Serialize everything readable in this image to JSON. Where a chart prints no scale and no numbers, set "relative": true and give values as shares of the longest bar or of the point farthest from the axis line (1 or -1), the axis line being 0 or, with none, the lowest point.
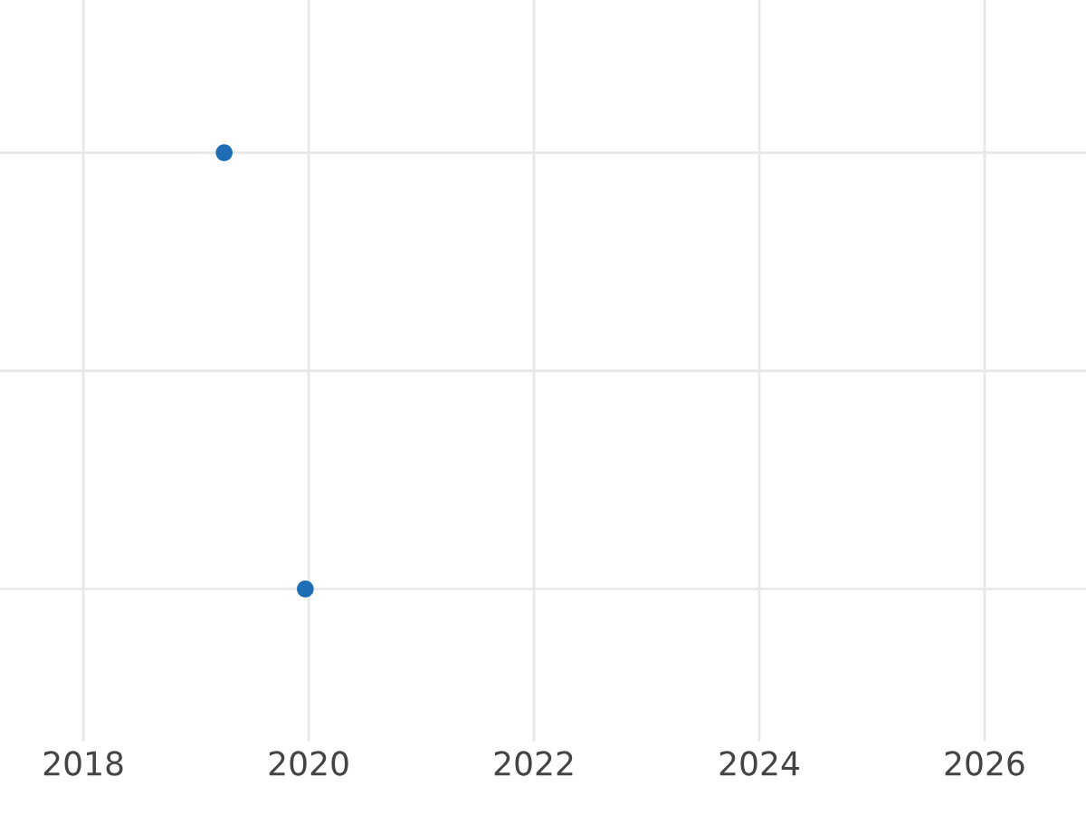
{
  "chart_data": {
    "type": "scatter",
    "relative": true,
    "x": [
      2019.25,
      2019.97
    ],
    "series": [
      {
        "color": "#1f6eb5",
        "values": [
          1,
          0
        ]
      }
    ],
    "xlim": [
      2017.26,
      2026.9
    ],
    "xticks": [
      2018,
      2020,
      2022,
      2024,
      2026
    ],
    "grid": true,
    "marker": "circle"
  }
}
